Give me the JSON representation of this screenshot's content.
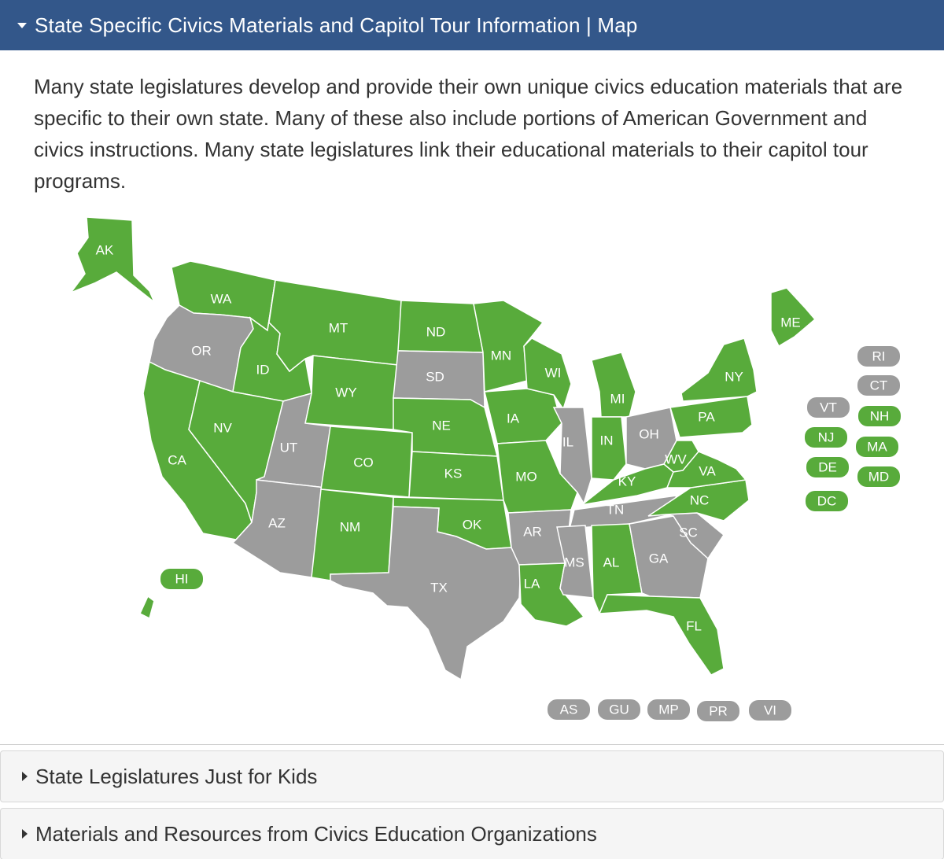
{
  "header": {
    "title": "State Specific Civics Materials and Capitol Tour Information | Map"
  },
  "intro_text": "Many state legislatures develop and provide their own unique civics education materials that are specific to their own state. Many of these also include portions of American Government and civics instructions. Many state legislatures link their educational materials to their capitol tour programs.",
  "legend_colors": {
    "highlighted": "#58ab3b",
    "not_highlighted": "#9c9c9c",
    "header_bg": "#33578a"
  },
  "map": {
    "states": {
      "WA": {
        "label": "WA",
        "status": "green"
      },
      "OR": {
        "label": "OR",
        "status": "gray"
      },
      "CA": {
        "label": "CA",
        "status": "green"
      },
      "ID": {
        "label": "ID",
        "status": "green"
      },
      "NV": {
        "label": "NV",
        "status": "green"
      },
      "MT": {
        "label": "MT",
        "status": "green"
      },
      "WY": {
        "label": "WY",
        "status": "green"
      },
      "UT": {
        "label": "UT",
        "status": "gray"
      },
      "AZ": {
        "label": "AZ",
        "status": "gray"
      },
      "CO": {
        "label": "CO",
        "status": "green"
      },
      "NM": {
        "label": "NM",
        "status": "green"
      },
      "ND": {
        "label": "ND",
        "status": "green"
      },
      "SD": {
        "label": "SD",
        "status": "gray"
      },
      "NE": {
        "label": "NE",
        "status": "green"
      },
      "KS": {
        "label": "KS",
        "status": "green"
      },
      "OK": {
        "label": "OK",
        "status": "green"
      },
      "TX": {
        "label": "TX",
        "status": "gray"
      },
      "MN": {
        "label": "MN",
        "status": "green"
      },
      "IA": {
        "label": "IA",
        "status": "green"
      },
      "MO": {
        "label": "MO",
        "status": "green"
      },
      "AR": {
        "label": "AR",
        "status": "gray"
      },
      "LA": {
        "label": "LA",
        "status": "green"
      },
      "WI": {
        "label": "WI",
        "status": "green"
      },
      "IL": {
        "label": "IL",
        "status": "gray"
      },
      "MI": {
        "label": "MI",
        "status": "green"
      },
      "IN": {
        "label": "IN",
        "status": "green"
      },
      "OH": {
        "label": "OH",
        "status": "gray"
      },
      "KY": {
        "label": "KY",
        "status": "green"
      },
      "TN": {
        "label": "TN",
        "status": "gray"
      },
      "MS": {
        "label": "MS",
        "status": "gray"
      },
      "AL": {
        "label": "AL",
        "status": "green"
      },
      "GA": {
        "label": "GA",
        "status": "gray"
      },
      "FL": {
        "label": "FL",
        "status": "green"
      },
      "SC": {
        "label": "SC",
        "status": "gray"
      },
      "NC": {
        "label": "NC",
        "status": "green"
      },
      "VA": {
        "label": "VA",
        "status": "green"
      },
      "WV": {
        "label": "WV",
        "status": "green"
      },
      "PA": {
        "label": "PA",
        "status": "green"
      },
      "NY": {
        "label": "NY",
        "status": "green"
      },
      "ME": {
        "label": "ME",
        "status": "green"
      },
      "AK": {
        "label": "AK",
        "status": "green"
      },
      "HI": {
        "label": "HI",
        "status": "green"
      }
    },
    "small_states": [
      {
        "label": "RI",
        "status": "gray"
      },
      {
        "label": "CT",
        "status": "gray"
      },
      {
        "label": "VT",
        "status": "gray"
      },
      {
        "label": "NH",
        "status": "green"
      },
      {
        "label": "NJ",
        "status": "green"
      },
      {
        "label": "MA",
        "status": "green"
      },
      {
        "label": "DE",
        "status": "green"
      },
      {
        "label": "MD",
        "status": "green"
      },
      {
        "label": "DC",
        "status": "green"
      }
    ],
    "territories": [
      {
        "label": "AS",
        "status": "gray"
      },
      {
        "label": "GU",
        "status": "gray"
      },
      {
        "label": "MP",
        "status": "gray"
      },
      {
        "label": "PR",
        "status": "gray"
      },
      {
        "label": "VI",
        "status": "gray"
      }
    ]
  },
  "sections": [
    {
      "label": "State Legislatures Just for Kids"
    },
    {
      "label": "Materials and Resources from Civics Education Organizations"
    }
  ]
}
